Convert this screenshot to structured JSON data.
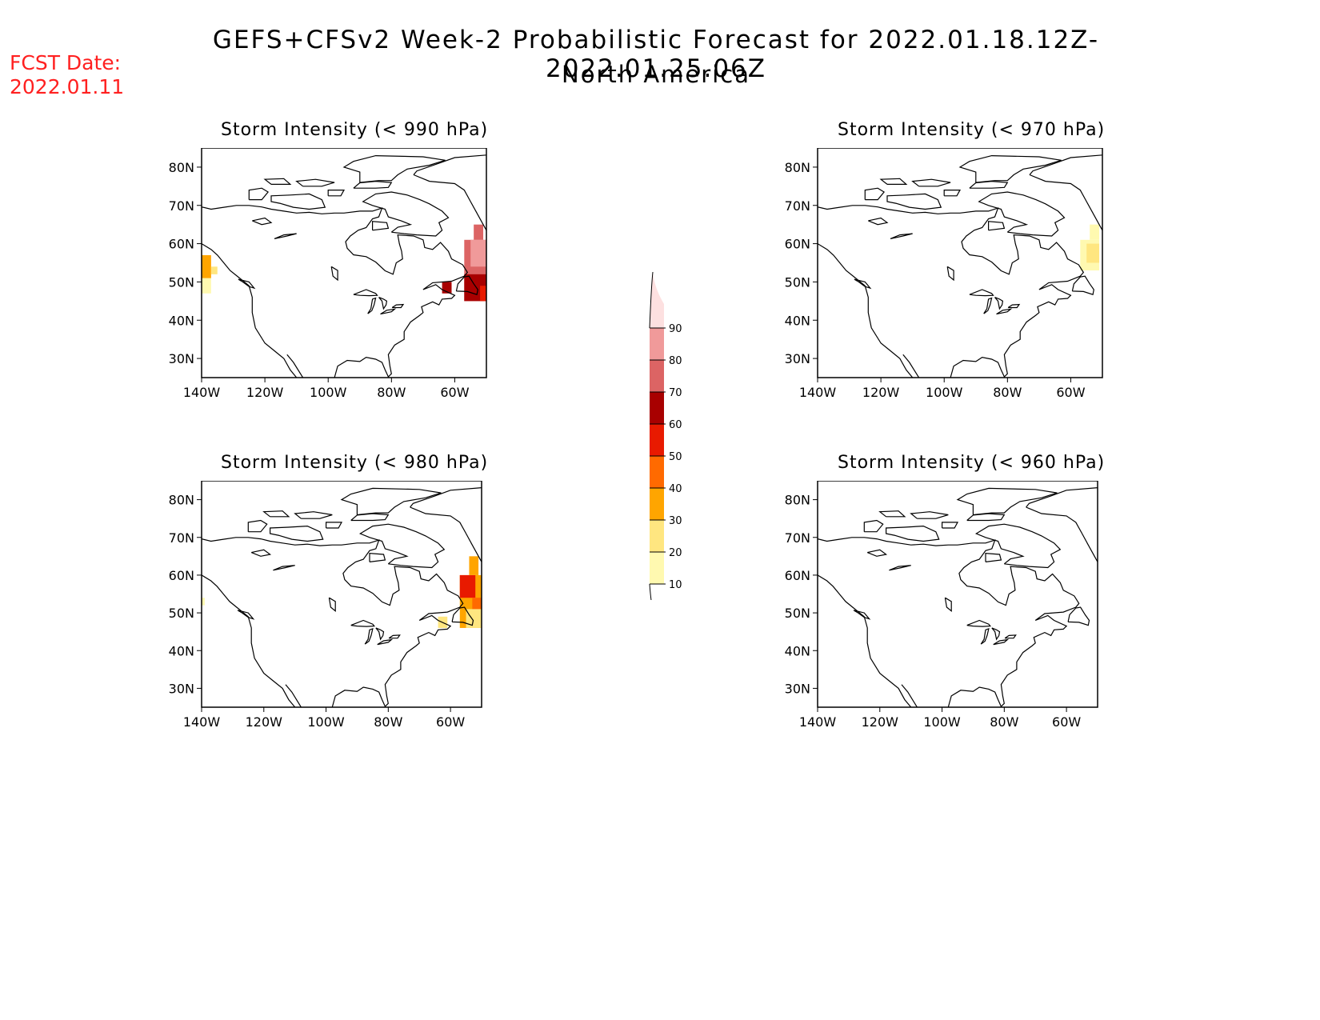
{
  "header": {
    "fcst_label": "FCST Date:",
    "fcst_date": "2022.01.11",
    "title": "GEFS+CFSv2 Week-2 Probabilistic Forecast for 2022.01.18.12Z-2022.01.25.06Z",
    "subtitle": "North America"
  },
  "axes": {
    "lat_ticks": [
      "80N",
      "70N",
      "60N",
      "50N",
      "40N",
      "30N"
    ],
    "lon_ticks": [
      "140W",
      "120W",
      "100W",
      "80W",
      "60W"
    ],
    "lat_values": [
      80,
      70,
      60,
      50,
      40,
      30
    ],
    "lon_values": [
      -140,
      -120,
      -100,
      -80,
      -60
    ],
    "lat_range": [
      25,
      85
    ],
    "lon_range": [
      -140,
      -50
    ]
  },
  "colorbar": {
    "levels": [
      "10",
      "20",
      "30",
      "40",
      "50",
      "60",
      "70",
      "80",
      "90"
    ],
    "colors": [
      "#fff9b0",
      "#ffe680",
      "#ffa500",
      "#ff6a00",
      "#e81a00",
      "#a80000",
      "#dc6464",
      "#f09a9a",
      "#fde0e0"
    ]
  },
  "panels": [
    {
      "title": "Storm Intensity (< 990 hPa)",
      "areas": [
        {
          "lon": [
            -140,
            -137
          ],
          "lat": [
            47,
            51
          ],
          "color": "#fff9b0"
        },
        {
          "lon": [
            -140,
            -137
          ],
          "lat": [
            51,
            57
          ],
          "color": "#ffa500"
        },
        {
          "lon": [
            -137,
            -135
          ],
          "lat": [
            52,
            54
          ],
          "color": "#ffe680"
        },
        {
          "lon": [
            -64,
            -61
          ],
          "lat": [
            47,
            50
          ],
          "color": "#a80000"
        },
        {
          "lon": [
            -57,
            -50
          ],
          "lat": [
            45,
            61
          ],
          "color": "#dc6464"
        },
        {
          "lon": [
            -54,
            -51
          ],
          "lat": [
            61,
            65
          ],
          "color": "#dc6464"
        },
        {
          "lon": [
            -55,
            -50
          ],
          "lat": [
            54,
            61
          ],
          "color": "#f09a9a"
        },
        {
          "lon": [
            -57,
            -50
          ],
          "lat": [
            45,
            52
          ],
          "color": "#a80000"
        },
        {
          "lon": [
            -52,
            -50
          ],
          "lat": [
            45,
            49
          ],
          "color": "#e81a00"
        }
      ]
    },
    {
      "title": "Storm Intensity (< 970 hPa)",
      "areas": [
        {
          "lon": [
            -57,
            -51
          ],
          "lat": [
            53,
            61
          ],
          "color": "#fff9b0"
        },
        {
          "lon": [
            -54,
            -51
          ],
          "lat": [
            61,
            65
          ],
          "color": "#fff9b0"
        },
        {
          "lon": [
            -55,
            -51
          ],
          "lat": [
            55,
            60
          ],
          "color": "#ffe680"
        }
      ]
    },
    {
      "title": "Storm Intensity (< 980 hPa)",
      "areas": [
        {
          "lon": [
            -140,
            -139
          ],
          "lat": [
            52,
            54
          ],
          "color": "#fff9b0"
        },
        {
          "lon": [
            -64,
            -61
          ],
          "lat": [
            46,
            49
          ],
          "color": "#ffe680"
        },
        {
          "lon": [
            -57,
            -50
          ],
          "lat": [
            46,
            60
          ],
          "color": "#ffa500"
        },
        {
          "lon": [
            -57,
            -52
          ],
          "lat": [
            54,
            60
          ],
          "color": "#e81a00"
        },
        {
          "lon": [
            -54,
            -51
          ],
          "lat": [
            60,
            65
          ],
          "color": "#ffa500"
        },
        {
          "lon": [
            -53,
            -50
          ],
          "lat": [
            50,
            54
          ],
          "color": "#ff6a00"
        },
        {
          "lon": [
            -55,
            -50
          ],
          "lat": [
            46,
            51
          ],
          "color": "#ffe680"
        }
      ]
    },
    {
      "title": "Storm Intensity (< 960 hPa)",
      "areas": []
    }
  ]
}
